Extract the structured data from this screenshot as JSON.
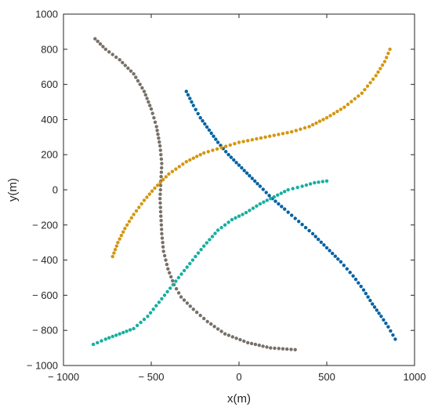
{
  "chart_data": {
    "type": "scatter",
    "xlabel": "x(m)",
    "ylabel": "y(m)",
    "xlim": [
      -1000,
      1000
    ],
    "ylim": [
      -1000,
      1000
    ],
    "x_ticks": [
      -1000,
      -500,
      0,
      500,
      1000
    ],
    "y_ticks": [
      -1000,
      -800,
      -600,
      -400,
      -200,
      0,
      200,
      400,
      600,
      800,
      1000
    ],
    "x_tick_labels": [
      "− 1000",
      "− 500",
      "0",
      "500",
      "1000"
    ],
    "y_tick_labels": [
      "− 1000",
      "− 800",
      "− 600",
      "− 400",
      "− 200",
      "0",
      "200",
      "400",
      "600",
      "800",
      "1000"
    ],
    "grid": false,
    "series": [
      {
        "color": "#777068",
        "points": [
          [
            -820,
            860
          ],
          [
            -760,
            800
          ],
          [
            -680,
            740
          ],
          [
            -600,
            660
          ],
          [
            -540,
            560
          ],
          [
            -500,
            460
          ],
          [
            -470,
            360
          ],
          [
            -450,
            250
          ],
          [
            -440,
            150
          ],
          [
            -445,
            50
          ],
          [
            -450,
            -50
          ],
          [
            -445,
            -150
          ],
          [
            -440,
            -250
          ],
          [
            -430,
            -350
          ],
          [
            -405,
            -450
          ],
          [
            -370,
            -540
          ],
          [
            -330,
            -610
          ],
          [
            -260,
            -680
          ],
          [
            -180,
            -750
          ],
          [
            -80,
            -820
          ],
          [
            50,
            -870
          ],
          [
            180,
            -900
          ],
          [
            320,
            -910
          ]
        ]
      },
      {
        "color": "#0062A3",
        "points": [
          [
            -300,
            560
          ],
          [
            -260,
            480
          ],
          [
            -220,
            410
          ],
          [
            -170,
            340
          ],
          [
            -120,
            270
          ],
          [
            -60,
            200
          ],
          [
            0,
            140
          ],
          [
            60,
            80
          ],
          [
            120,
            20
          ],
          [
            190,
            -50
          ],
          [
            260,
            -110
          ],
          [
            340,
            -180
          ],
          [
            420,
            -250
          ],
          [
            500,
            -330
          ],
          [
            580,
            -410
          ],
          [
            650,
            -490
          ],
          [
            710,
            -570
          ],
          [
            760,
            -650
          ],
          [
            810,
            -720
          ],
          [
            850,
            -780
          ],
          [
            890,
            -850
          ]
        ]
      },
      {
        "color": "#D4970F",
        "points": [
          [
            -720,
            -380
          ],
          [
            -690,
            -300
          ],
          [
            -650,
            -220
          ],
          [
            -600,
            -140
          ],
          [
            -540,
            -60
          ],
          [
            -480,
            10
          ],
          [
            -400,
            90
          ],
          [
            -300,
            160
          ],
          [
            -200,
            210
          ],
          [
            -100,
            240
          ],
          [
            0,
            270
          ],
          [
            100,
            290
          ],
          [
            200,
            310
          ],
          [
            300,
            330
          ],
          [
            400,
            360
          ],
          [
            500,
            410
          ],
          [
            600,
            470
          ],
          [
            700,
            550
          ],
          [
            780,
            650
          ],
          [
            830,
            730
          ],
          [
            860,
            800
          ]
        ]
      },
      {
        "color": "#16AFA0",
        "points": [
          [
            -830,
            -880
          ],
          [
            -760,
            -850
          ],
          [
            -680,
            -820
          ],
          [
            -600,
            -790
          ],
          [
            -520,
            -720
          ],
          [
            -440,
            -620
          ],
          [
            -360,
            -520
          ],
          [
            -280,
            -420
          ],
          [
            -200,
            -320
          ],
          [
            -120,
            -230
          ],
          [
            -40,
            -170
          ],
          [
            40,
            -130
          ],
          [
            120,
            -80
          ],
          [
            200,
            -40
          ],
          [
            280,
            0
          ],
          [
            360,
            20
          ],
          [
            430,
            40
          ],
          [
            500,
            50
          ]
        ]
      }
    ]
  }
}
